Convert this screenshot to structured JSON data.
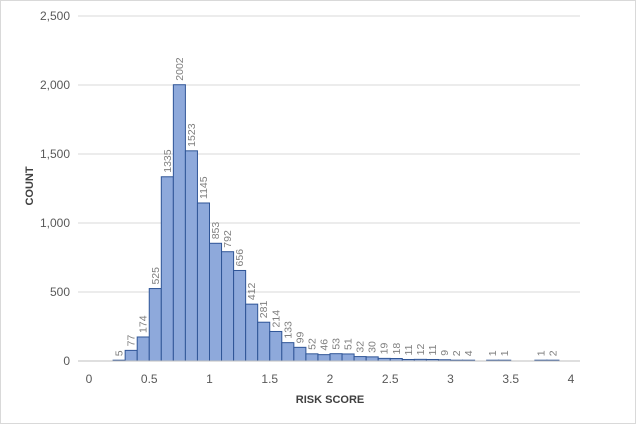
{
  "chart_data": {
    "type": "bar",
    "title": "",
    "xlabel": "RISK SCORE",
    "ylabel": "COUNT",
    "xlim": [
      0,
      4
    ],
    "ylim": [
      0,
      2500
    ],
    "grid": true,
    "legend": "none",
    "bin_width": 0.1,
    "x_ticks": [
      "0",
      "0.5",
      "1",
      "1.5",
      "2",
      "2.5",
      "3",
      "3.5",
      "4"
    ],
    "y_ticks": [
      "0",
      "500",
      "1,000",
      "1,500",
      "2,000",
      "2,500"
    ],
    "bar_color": "#8ea9db",
    "bar_edge_color": "#2f5597",
    "bins": [
      {
        "x0": 0.2,
        "x1": 0.3,
        "value": 5
      },
      {
        "x0": 0.3,
        "x1": 0.4,
        "value": 77
      },
      {
        "x0": 0.4,
        "x1": 0.5,
        "value": 174
      },
      {
        "x0": 0.5,
        "x1": 0.6,
        "value": 525
      },
      {
        "x0": 0.6,
        "x1": 0.7,
        "value": 1335
      },
      {
        "x0": 0.7,
        "x1": 0.8,
        "value": 2002
      },
      {
        "x0": 0.8,
        "x1": 0.9,
        "value": 1523
      },
      {
        "x0": 0.9,
        "x1": 1.0,
        "value": 1145
      },
      {
        "x0": 1.0,
        "x1": 1.1,
        "value": 853
      },
      {
        "x0": 1.1,
        "x1": 1.2,
        "value": 792
      },
      {
        "x0": 1.2,
        "x1": 1.3,
        "value": 656
      },
      {
        "x0": 1.3,
        "x1": 1.4,
        "value": 412
      },
      {
        "x0": 1.4,
        "x1": 1.5,
        "value": 281
      },
      {
        "x0": 1.5,
        "x1": 1.6,
        "value": 214
      },
      {
        "x0": 1.6,
        "x1": 1.7,
        "value": 133
      },
      {
        "x0": 1.7,
        "x1": 1.8,
        "value": 99
      },
      {
        "x0": 1.8,
        "x1": 1.9,
        "value": 52
      },
      {
        "x0": 1.9,
        "x1": 2.0,
        "value": 46
      },
      {
        "x0": 2.0,
        "x1": 2.1,
        "value": 53
      },
      {
        "x0": 2.1,
        "x1": 2.2,
        "value": 51
      },
      {
        "x0": 2.2,
        "x1": 2.3,
        "value": 32
      },
      {
        "x0": 2.3,
        "x1": 2.4,
        "value": 30
      },
      {
        "x0": 2.4,
        "x1": 2.5,
        "value": 19
      },
      {
        "x0": 2.5,
        "x1": 2.6,
        "value": 18
      },
      {
        "x0": 2.6,
        "x1": 2.7,
        "value": 11
      },
      {
        "x0": 2.7,
        "x1": 2.8,
        "value": 12
      },
      {
        "x0": 2.8,
        "x1": 2.9,
        "value": 11
      },
      {
        "x0": 2.9,
        "x1": 3.0,
        "value": 9
      },
      {
        "x0": 3.0,
        "x1": 3.1,
        "value": 2
      },
      {
        "x0": 3.1,
        "x1": 3.2,
        "value": 4
      },
      {
        "x0": 3.3,
        "x1": 3.4,
        "value": 1
      },
      {
        "x0": 3.4,
        "x1": 3.5,
        "value": 1
      },
      {
        "x0": 3.7,
        "x1": 3.8,
        "value": 1
      },
      {
        "x0": 3.8,
        "x1": 3.9,
        "value": 2
      }
    ]
  }
}
